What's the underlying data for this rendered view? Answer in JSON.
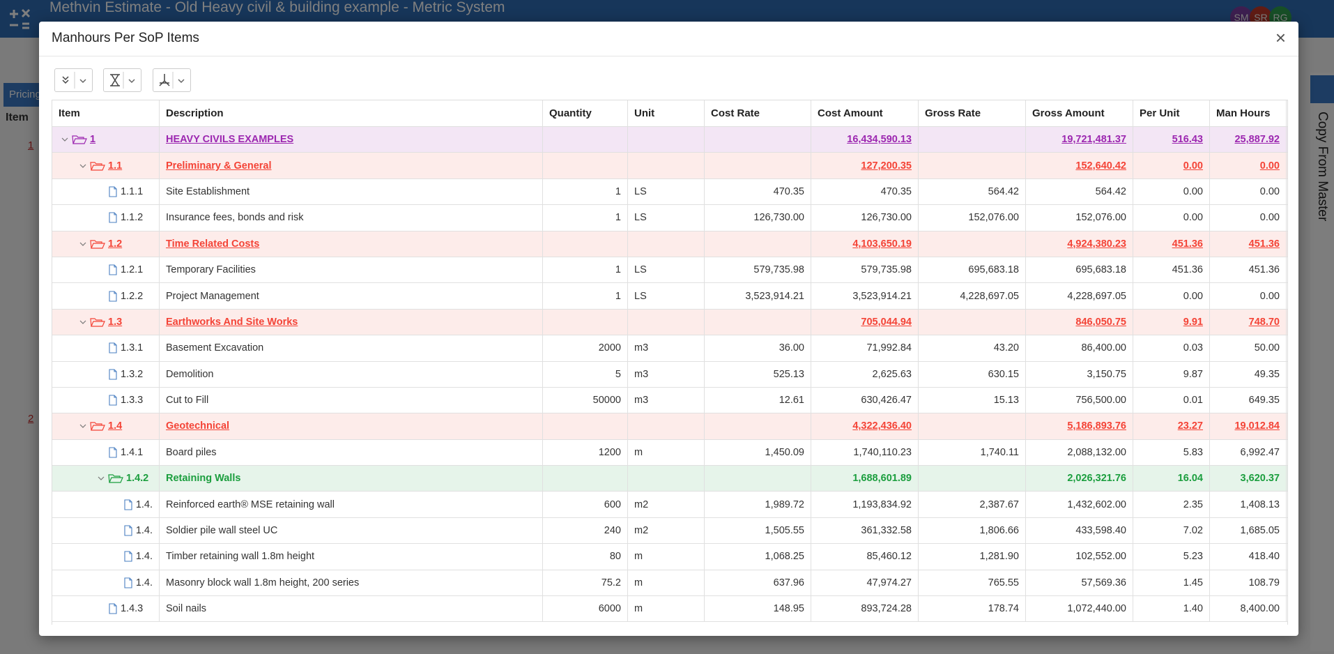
{
  "app": {
    "title": "Methvin Estimate - Old Heavy civil & building example - Metric System",
    "avatars": [
      "SM",
      "SR",
      "RG"
    ],
    "tab": "Pricing",
    "column": "Item",
    "side_label": "Copy From Master",
    "rows": [
      "1",
      "2"
    ]
  },
  "dialog": {
    "title": "Manhours Per SoP Items",
    "close": "×",
    "group_colors": {
      "1": "#9c27b0",
      "2": "#f44336",
      "3": "#1b9e3e"
    },
    "group_backgrounds": {
      "1": "#f3e6f5",
      "2": "#fdecea",
      "3": "#e6f4ea"
    },
    "table": {
      "columns": [
        "Item",
        "Description",
        "Quantity",
        "Unit",
        "Cost Rate",
        "Cost Amount",
        "Gross Rate",
        "Gross Amount",
        "Per Unit",
        "Man Hours"
      ],
      "rows": [
        {
          "level": 1,
          "cells": [
            "1",
            "HEAVY CIVILS EXAMPLES",
            null,
            null,
            null,
            "16,434,590.13",
            null,
            "19,721,481.37",
            "516.43",
            "25,887.92"
          ]
        },
        {
          "level": 2,
          "cells": [
            "1.1",
            "Preliminary & General",
            null,
            null,
            null,
            "127,200.35",
            null,
            "152,640.42",
            "0.00",
            "0.00"
          ]
        },
        {
          "level": 3,
          "cells": [
            "1.1.1",
            "Site Establishment",
            "1",
            "LS",
            "470.35",
            "470.35",
            "564.42",
            "564.42",
            "0.00",
            "0.00"
          ]
        },
        {
          "level": 3,
          "cells": [
            "1.1.2",
            "Insurance fees, bonds and risk",
            "1",
            "LS",
            "126,730.00",
            "126,730.00",
            "152,076.00",
            "152,076.00",
            "0.00",
            "0.00"
          ]
        },
        {
          "level": 2,
          "cells": [
            "1.2",
            "Time Related Costs",
            null,
            null,
            null,
            "4,103,650.19",
            null,
            "4,924,380.23",
            "451.36",
            "451.36"
          ]
        },
        {
          "level": 3,
          "cells": [
            "1.2.1",
            "Temporary Facilities",
            "1",
            "LS",
            "579,735.98",
            "579,735.98",
            "695,683.18",
            "695,683.18",
            "451.36",
            "451.36"
          ]
        },
        {
          "level": 3,
          "cells": [
            "1.2.2",
            "Project Management",
            "1",
            "LS",
            "3,523,914.21",
            "3,523,914.21",
            "4,228,697.05",
            "4,228,697.05",
            "0.00",
            "0.00"
          ]
        },
        {
          "level": 2,
          "cells": [
            "1.3",
            "Earthworks And Site Works",
            null,
            null,
            null,
            "705,044.94",
            null,
            "846,050.75",
            "9.91",
            "748.70"
          ]
        },
        {
          "level": 3,
          "cells": [
            "1.3.1",
            "Basement Excavation",
            "2000",
            "m3",
            "36.00",
            "71,992.84",
            "43.20",
            "86,400.00",
            "0.03",
            "50.00"
          ]
        },
        {
          "level": 3,
          "cells": [
            "1.3.2",
            "Demolition",
            "5",
            "m3",
            "525.13",
            "2,625.63",
            "630.15",
            "3,150.75",
            "9.87",
            "49.35"
          ]
        },
        {
          "level": 3,
          "cells": [
            "1.3.3",
            "Cut to Fill",
            "50000",
            "m3",
            "12.61",
            "630,426.47",
            "15.13",
            "756,500.00",
            "0.01",
            "649.35"
          ]
        },
        {
          "level": 2,
          "cells": [
            "1.4",
            "Geotechnical",
            null,
            null,
            null,
            "4,322,436.40",
            null,
            "5,186,893.76",
            "23.27",
            "19,012.84"
          ]
        },
        {
          "level": 3,
          "cells": [
            "1.4.1",
            "Board piles",
            "1200",
            "m",
            "1,450.09",
            "1,740,110.23",
            "1,740.11",
            "2,088,132.00",
            "5.83",
            "6,992.47"
          ]
        },
        {
          "level": 3,
          "cells": [
            "1.4.2",
            "Retaining Walls",
            null,
            null,
            null,
            "1,688,601.89",
            null,
            "2,026,321.76",
            "16.04",
            "3,620.37"
          ]
        },
        {
          "level": 4,
          "cells": [
            "1.4.",
            "Reinforced earth® MSE retaining wall",
            "600",
            "m2",
            "1,989.72",
            "1,193,834.92",
            "2,387.67",
            "1,432,602.00",
            "2.35",
            "1,408.13"
          ]
        },
        {
          "level": 4,
          "cells": [
            "1.4.",
            "Soldier pile wall steel UC",
            "240",
            "m2",
            "1,505.55",
            "361,332.58",
            "1,806.66",
            "433,598.40",
            "7.02",
            "1,685.05"
          ]
        },
        {
          "level": 4,
          "cells": [
            "1.4.",
            "Timber retaining wall 1.8m height",
            "80",
            "m",
            "1,068.25",
            "85,460.12",
            "1,281.90",
            "102,552.00",
            "5.23",
            "418.40"
          ]
        },
        {
          "level": 4,
          "cells": [
            "1.4.",
            "Masonry block wall 1.8m height, 200 series",
            "75.2",
            "m",
            "637.96",
            "47,974.27",
            "765.55",
            "57,569.36",
            "1.45",
            "108.79"
          ]
        },
        {
          "level": 3,
          "cells": [
            "1.4.3",
            "Soil nails",
            "6000",
            "m",
            "148.95",
            "893,724.28",
            "178.74",
            "1,072,440.00",
            "1.40",
            "8,400.00"
          ]
        }
      ]
    }
  }
}
